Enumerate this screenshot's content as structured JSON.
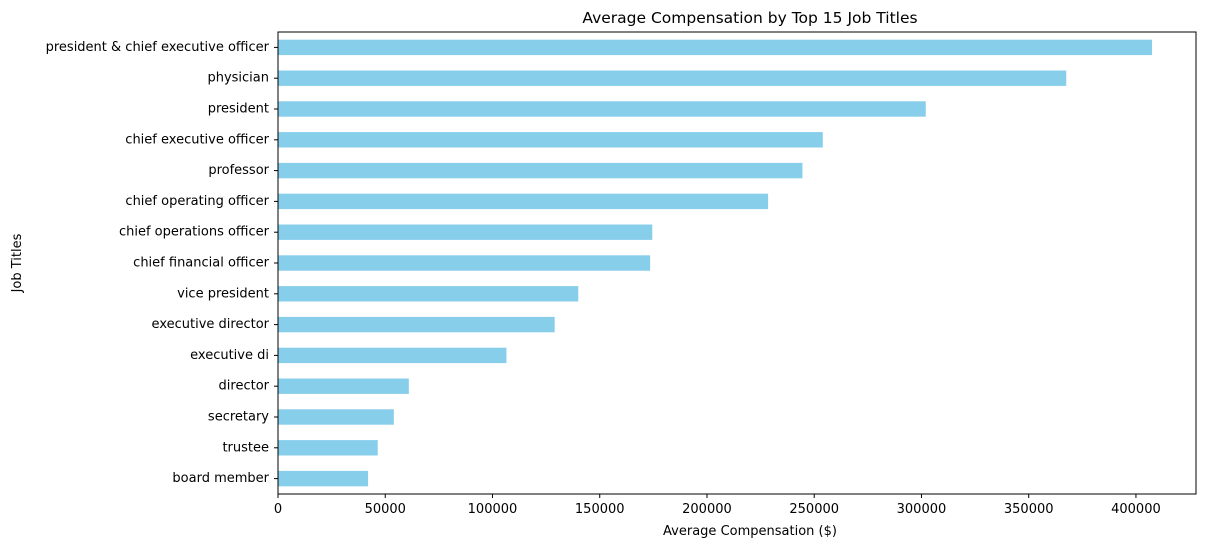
{
  "chart_data": {
    "type": "bar",
    "orientation": "horizontal",
    "title": "Average Compensation by Top 15 Job Titles",
    "xlabel": "Average Compensation ($)",
    "ylabel": "Job Titles",
    "bar_color": "#87ceeb",
    "categories": [
      "president & chief executive officer",
      "physician",
      "president",
      "chief executive officer",
      "professor",
      "chief operating officer",
      "chief operations officer",
      "chief financial officer",
      "vice president",
      "executive director",
      "executive di",
      "director",
      "secretary",
      "trustee",
      "board member"
    ],
    "values": [
      407500,
      367500,
      302000,
      254000,
      244500,
      228500,
      174500,
      173500,
      140000,
      129000,
      106500,
      61000,
      54000,
      46500,
      42000
    ],
    "xlim": [
      0,
      428000
    ],
    "xticks": [
      0,
      50000,
      100000,
      150000,
      200000,
      250000,
      300000,
      350000,
      400000
    ],
    "xtick_labels": [
      "0",
      "50000",
      "100000",
      "150000",
      "200000",
      "250000",
      "300000",
      "350000",
      "400000"
    ],
    "grid": false,
    "legend": "none"
  }
}
